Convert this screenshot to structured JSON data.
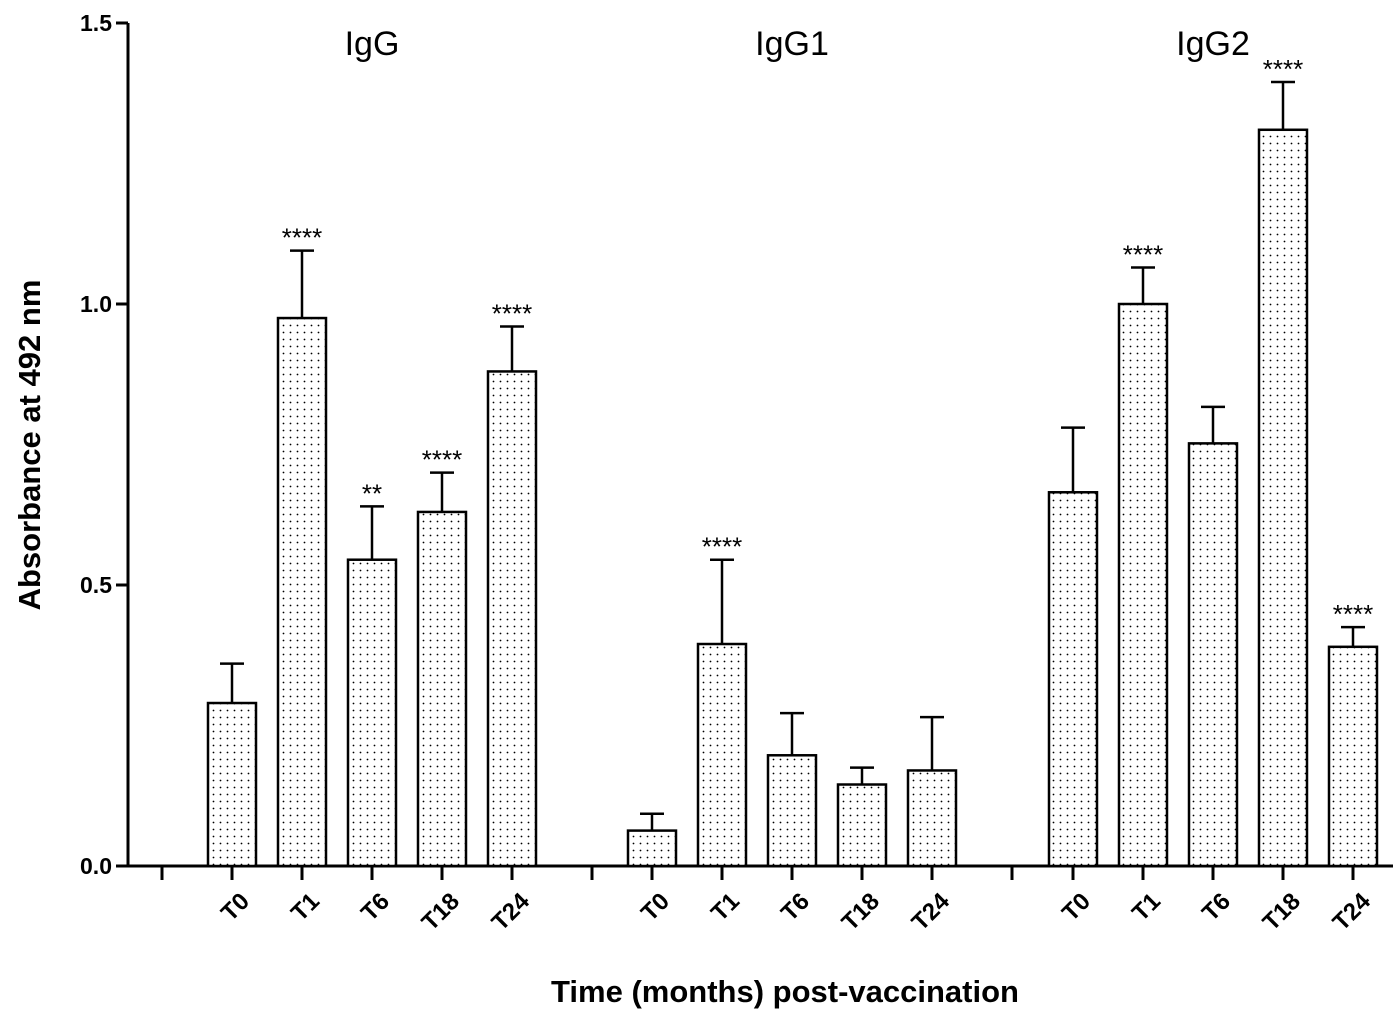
{
  "chart_data": {
    "type": "bar",
    "xlabel": "Time (months) post-vaccination",
    "ylabel": "Absorbance at 492 nm",
    "ylim": [
      0,
      1.5
    ],
    "yticks": [
      "0.0",
      "0.5",
      "1.0",
      "1.5"
    ],
    "ytick_values": [
      0,
      0.5,
      1.0,
      1.5
    ],
    "grid": false,
    "bar_fill": "dotted",
    "groups": [
      {
        "name": "IgG",
        "categories": [
          "T0",
          "T1",
          "T6",
          "T18",
          "T24"
        ],
        "values": [
          0.29,
          0.975,
          0.545,
          0.63,
          0.88
        ],
        "errors": [
          0.07,
          0.12,
          0.095,
          0.07,
          0.08
        ],
        "significance": [
          "",
          "****",
          "**",
          "****",
          "****"
        ]
      },
      {
        "name": "IgG1",
        "categories": [
          "T0",
          "T1",
          "T6",
          "T18",
          "T24"
        ],
        "values": [
          0.063,
          0.395,
          0.197,
          0.145,
          0.17
        ],
        "errors": [
          0.03,
          0.15,
          0.075,
          0.03,
          0.095
        ],
        "significance": [
          "",
          "****",
          "",
          "",
          ""
        ]
      },
      {
        "name": "IgG2",
        "categories": [
          "T0",
          "T1",
          "T6",
          "T18",
          "T24"
        ],
        "values": [
          0.665,
          1.0,
          0.752,
          1.31,
          0.39
        ],
        "errors": [
          0.115,
          0.065,
          0.065,
          0.085,
          0.035
        ],
        "significance": [
          "",
          "****",
          "",
          "****",
          "****"
        ]
      }
    ]
  }
}
